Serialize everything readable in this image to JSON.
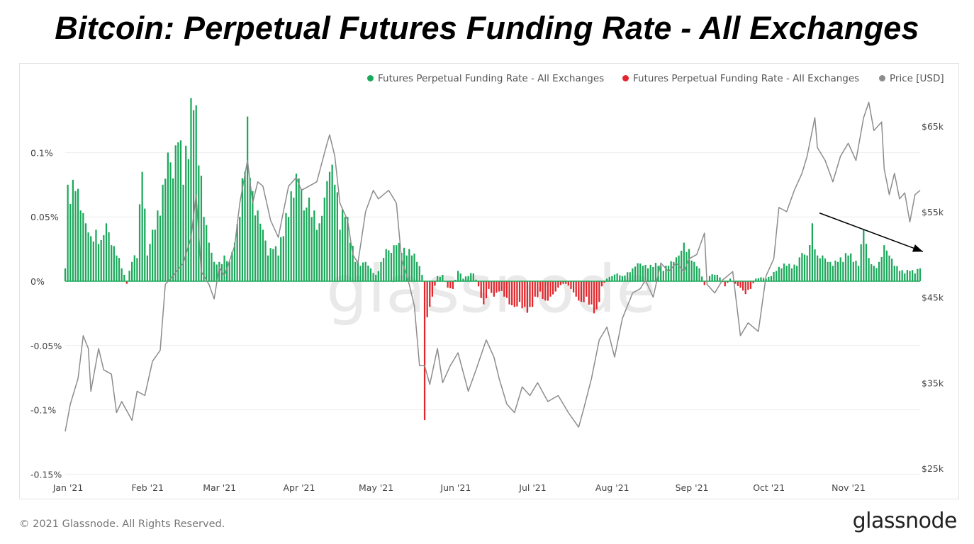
{
  "title": "Bitcoin: Perpetual Futures Funding Rate - All Exchanges",
  "copyright": "© 2021 Glassnode. All Rights Reserved.",
  "brand": "glassnode",
  "watermark": "glassnode",
  "colors": {
    "positive": "#1aa85a",
    "negative": "#e2262c",
    "price": "#8c8c8c",
    "grid": "#ececec",
    "arrow": "#000000"
  },
  "chart_data": {
    "type": "bar",
    "legend": [
      {
        "label": "Futures Perpetual Funding Rate - All Exchanges",
        "color": "#1aa85a"
      },
      {
        "label": "Futures Perpetual Funding Rate - All Exchanges",
        "color": "#e2262c"
      },
      {
        "label": "Price [USD]",
        "color": "#8c8c8c"
      }
    ],
    "legend_position": "top-right",
    "grid": true,
    "x_range": [
      "2021-01-01",
      "2021-11-30"
    ],
    "x_ticks": [
      "Jan '21",
      "Feb '21",
      "Mar '21",
      "Apr '21",
      "May '21",
      "Jun '21",
      "Jul '21",
      "Aug '21",
      "Sep '21",
      "Oct '21",
      "Nov '21"
    ],
    "y_left": {
      "label": "",
      "range": [
        -0.15,
        0.15
      ],
      "ticks": [
        "0.1%",
        "0.05%",
        "0%",
        "-0.05%",
        "-0.1%",
        "-0.15%"
      ],
      "tick_values": [
        0.1,
        0.05,
        0,
        -0.05,
        -0.1,
        -0.15
      ]
    },
    "y_right": {
      "label": "",
      "range": [
        25000,
        70000
      ],
      "ticks": [
        "$65k",
        "$55k",
        "$45k",
        "$35k",
        "$25k"
      ],
      "tick_values": [
        65000,
        55000,
        45000,
        35000,
        25000
      ]
    },
    "funding_rate_anchors": [
      [
        "2021-01-01",
        0.01
      ],
      [
        "2021-01-02",
        0.075
      ],
      [
        "2021-01-03",
        0.06
      ],
      [
        "2021-01-05",
        0.07
      ],
      [
        "2021-01-07",
        0.055
      ],
      [
        "2021-01-09",
        0.045
      ],
      [
        "2021-01-11",
        0.035
      ],
      [
        "2021-01-13",
        0.04
      ],
      [
        "2021-01-15",
        0.032
      ],
      [
        "2021-01-17",
        0.045
      ],
      [
        "2021-01-19",
        0.028
      ],
      [
        "2021-01-21",
        0.02
      ],
      [
        "2021-01-23",
        0.01
      ],
      [
        "2021-01-25",
        -0.002
      ],
      [
        "2021-01-27",
        0.015
      ],
      [
        "2021-01-29",
        0.018
      ],
      [
        "2021-01-31",
        0.085
      ],
      [
        "2021-02-02",
        0.02
      ],
      [
        "2021-02-04",
        0.04
      ],
      [
        "2021-02-06",
        0.055
      ],
      [
        "2021-02-08",
        0.075
      ],
      [
        "2021-02-10",
        0.1
      ],
      [
        "2021-02-12",
        0.08
      ],
      [
        "2021-02-14",
        0.108
      ],
      [
        "2021-02-16",
        0.075
      ],
      [
        "2021-02-18",
        0.095
      ],
      [
        "2021-02-20",
        0.133
      ],
      [
        "2021-02-22",
        0.09
      ],
      [
        "2021-02-24",
        0.05
      ],
      [
        "2021-02-26",
        0.03
      ],
      [
        "2021-02-28",
        0.015
      ],
      [
        "2021-03-02",
        0.015
      ],
      [
        "2021-03-04",
        0.02
      ],
      [
        "2021-03-06",
        0.015
      ],
      [
        "2021-03-08",
        0.03
      ],
      [
        "2021-03-10",
        0.05
      ],
      [
        "2021-03-12",
        0.085
      ],
      [
        "2021-03-13",
        0.128
      ],
      [
        "2021-03-15",
        0.07
      ],
      [
        "2021-03-17",
        0.055
      ],
      [
        "2021-03-19",
        0.04
      ],
      [
        "2021-03-21",
        0.02
      ],
      [
        "2021-03-23",
        0.025
      ],
      [
        "2021-03-25",
        0.02
      ],
      [
        "2021-03-27",
        0.035
      ],
      [
        "2021-03-29",
        0.05
      ],
      [
        "2021-03-31",
        0.065
      ],
      [
        "2021-04-02",
        0.08
      ],
      [
        "2021-04-04",
        0.055
      ],
      [
        "2021-04-06",
        0.065
      ],
      [
        "2021-04-08",
        0.055
      ],
      [
        "2021-04-10",
        0.045
      ],
      [
        "2021-04-12",
        0.065
      ],
      [
        "2021-04-14",
        0.085
      ],
      [
        "2021-04-16",
        0.075
      ],
      [
        "2021-04-18",
        0.04
      ],
      [
        "2021-04-20",
        0.05
      ],
      [
        "2021-04-22",
        0.03
      ],
      [
        "2021-04-24",
        0.015
      ],
      [
        "2021-04-26",
        0.012
      ],
      [
        "2021-04-28",
        0.015
      ],
      [
        "2021-04-30",
        0.01
      ],
      [
        "2021-05-02",
        0.005
      ],
      [
        "2021-05-04",
        0.015
      ],
      [
        "2021-05-06",
        0.025
      ],
      [
        "2021-05-08",
        0.022
      ],
      [
        "2021-05-10",
        0.028
      ],
      [
        "2021-05-12",
        0.022
      ],
      [
        "2021-05-14",
        0.02
      ],
      [
        "2021-05-16",
        0.02
      ],
      [
        "2021-05-18",
        0.015
      ],
      [
        "2021-05-20",
        0.005
      ],
      [
        "2021-05-21",
        -0.108
      ],
      [
        "2021-05-22",
        -0.028
      ],
      [
        "2021-05-24",
        -0.012
      ],
      [
        "2021-05-26",
        0.004
      ],
      [
        "2021-05-28",
        0.005
      ],
      [
        "2021-05-30",
        -0.005
      ],
      [
        "2021-06-01",
        -0.006
      ],
      [
        "2021-06-03",
        0.008
      ],
      [
        "2021-06-05",
        0.002
      ],
      [
        "2021-06-07",
        0.004
      ],
      [
        "2021-06-09",
        0.006
      ],
      [
        "2021-06-11",
        -0.004
      ],
      [
        "2021-06-13",
        -0.018
      ],
      [
        "2021-06-15",
        -0.006
      ],
      [
        "2021-06-17",
        -0.012
      ],
      [
        "2021-06-19",
        -0.008
      ],
      [
        "2021-06-21",
        -0.012
      ],
      [
        "2021-06-23",
        -0.018
      ],
      [
        "2021-06-25",
        -0.02
      ],
      [
        "2021-06-27",
        -0.016
      ],
      [
        "2021-06-29",
        -0.02
      ],
      [
        "2021-07-01",
        -0.02
      ],
      [
        "2021-07-03",
        -0.012
      ],
      [
        "2021-07-05",
        -0.008
      ],
      [
        "2021-07-07",
        -0.015
      ],
      [
        "2021-07-09",
        -0.012
      ],
      [
        "2021-07-11",
        -0.008
      ],
      [
        "2021-07-13",
        -0.003
      ],
      [
        "2021-07-15",
        -0.002
      ],
      [
        "2021-07-17",
        -0.006
      ],
      [
        "2021-07-19",
        -0.012
      ],
      [
        "2021-07-21",
        -0.016
      ],
      [
        "2021-07-23",
        -0.012
      ],
      [
        "2021-07-25",
        -0.018
      ],
      [
        "2021-07-27",
        -0.022
      ],
      [
        "2021-07-29",
        -0.004
      ],
      [
        "2021-07-31",
        0.002
      ],
      [
        "2021-08-02",
        0.004
      ],
      [
        "2021-08-04",
        0.006
      ],
      [
        "2021-08-06",
        0.004
      ],
      [
        "2021-08-08",
        0.007
      ],
      [
        "2021-08-10",
        0.01
      ],
      [
        "2021-08-12",
        0.014
      ],
      [
        "2021-08-14",
        0.012
      ],
      [
        "2021-08-16",
        0.01
      ],
      [
        "2021-08-18",
        0.011
      ],
      [
        "2021-08-20",
        0.012
      ],
      [
        "2021-08-22",
        0.008
      ],
      [
        "2021-08-24",
        0.012
      ],
      [
        "2021-08-26",
        0.015
      ],
      [
        "2021-08-28",
        0.02
      ],
      [
        "2021-08-30",
        0.03
      ],
      [
        "2021-09-01",
        0.025
      ],
      [
        "2021-09-03",
        0.015
      ],
      [
        "2021-09-05",
        0.01
      ],
      [
        "2021-09-07",
        -0.003
      ],
      [
        "2021-09-09",
        0.004
      ],
      [
        "2021-09-11",
        0.005
      ],
      [
        "2021-09-13",
        0.003
      ],
      [
        "2021-09-15",
        -0.004
      ],
      [
        "2021-09-17",
        0.002
      ],
      [
        "2021-09-19",
        -0.002
      ],
      [
        "2021-09-21",
        -0.005
      ],
      [
        "2021-09-23",
        -0.01
      ],
      [
        "2021-09-25",
        -0.006
      ],
      [
        "2021-09-27",
        0.002
      ],
      [
        "2021-09-29",
        0.003
      ],
      [
        "2021-10-01",
        0.002
      ],
      [
        "2021-10-03",
        0.004
      ],
      [
        "2021-10-05",
        0.008
      ],
      [
        "2021-10-07",
        0.01
      ],
      [
        "2021-10-09",
        0.012
      ],
      [
        "2021-10-11",
        0.01
      ],
      [
        "2021-10-13",
        0.012
      ],
      [
        "2021-10-15",
        0.022
      ],
      [
        "2021-10-17",
        0.02
      ],
      [
        "2021-10-19",
        0.045
      ],
      [
        "2021-10-21",
        0.02
      ],
      [
        "2021-10-23",
        0.02
      ],
      [
        "2021-10-25",
        0.015
      ],
      [
        "2021-10-27",
        0.012
      ],
      [
        "2021-10-29",
        0.015
      ],
      [
        "2021-10-31",
        0.015
      ],
      [
        "2021-11-02",
        0.02
      ],
      [
        "2021-11-04",
        0.015
      ],
      [
        "2021-11-06",
        0.012
      ],
      [
        "2021-11-08",
        0.04
      ],
      [
        "2021-11-10",
        0.018
      ],
      [
        "2021-11-12",
        0.012
      ],
      [
        "2021-11-14",
        0.015
      ],
      [
        "2021-11-16",
        0.028
      ],
      [
        "2021-11-18",
        0.02
      ],
      [
        "2021-11-20",
        0.012
      ],
      [
        "2021-11-22",
        0.008
      ],
      [
        "2021-11-24",
        0.006
      ],
      [
        "2021-11-26",
        0.008
      ],
      [
        "2021-11-28",
        0.006
      ],
      [
        "2021-11-30",
        0.01
      ]
    ],
    "price_usd_anchors": [
      [
        "2021-01-01",
        29300
      ],
      [
        "2021-01-03",
        32500
      ],
      [
        "2021-01-06",
        35500
      ],
      [
        "2021-01-08",
        40500
      ],
      [
        "2021-01-10",
        39000
      ],
      [
        "2021-01-11",
        34000
      ],
      [
        "2021-01-14",
        39000
      ],
      [
        "2021-01-16",
        36500
      ],
      [
        "2021-01-19",
        36000
      ],
      [
        "2021-01-21",
        31500
      ],
      [
        "2021-01-23",
        32800
      ],
      [
        "2021-01-27",
        30600
      ],
      [
        "2021-01-29",
        34000
      ],
      [
        "2021-02-01",
        33500
      ],
      [
        "2021-02-04",
        37500
      ],
      [
        "2021-02-07",
        38800
      ],
      [
        "2021-02-09",
        46500
      ],
      [
        "2021-02-12",
        47500
      ],
      [
        "2021-02-16",
        49000
      ],
      [
        "2021-02-19",
        52000
      ],
      [
        "2021-02-21",
        57000
      ],
      [
        "2021-02-23",
        48000
      ],
      [
        "2021-02-26",
        46500
      ],
      [
        "2021-02-28",
        44800
      ],
      [
        "2021-03-02",
        48500
      ],
      [
        "2021-03-04",
        47500
      ],
      [
        "2021-03-08",
        51000
      ],
      [
        "2021-03-10",
        56000
      ],
      [
        "2021-03-13",
        61000
      ],
      [
        "2021-03-15",
        56000
      ],
      [
        "2021-03-17",
        58500
      ],
      [
        "2021-03-19",
        58000
      ],
      [
        "2021-03-22",
        54000
      ],
      [
        "2021-03-25",
        52000
      ],
      [
        "2021-03-27",
        55000
      ],
      [
        "2021-03-29",
        58000
      ],
      [
        "2021-04-01",
        59000
      ],
      [
        "2021-04-03",
        57500
      ],
      [
        "2021-04-06",
        58000
      ],
      [
        "2021-04-09",
        58500
      ],
      [
        "2021-04-13",
        63000
      ],
      [
        "2021-04-14",
        64000
      ],
      [
        "2021-04-16",
        61500
      ],
      [
        "2021-04-18",
        56000
      ],
      [
        "2021-04-21",
        54000
      ],
      [
        "2021-04-23",
        50000
      ],
      [
        "2021-04-25",
        49000
      ],
      [
        "2021-04-28",
        55000
      ],
      [
        "2021-05-01",
        57500
      ],
      [
        "2021-05-03",
        56500
      ],
      [
        "2021-05-07",
        57500
      ],
      [
        "2021-05-10",
        56000
      ],
      [
        "2021-05-12",
        49500
      ],
      [
        "2021-05-15",
        46500
      ],
      [
        "2021-05-17",
        44000
      ],
      [
        "2021-05-19",
        37000
      ],
      [
        "2021-05-21",
        37000
      ],
      [
        "2021-05-23",
        34800
      ],
      [
        "2021-05-26",
        39000
      ],
      [
        "2021-05-28",
        35000
      ],
      [
        "2021-05-31",
        37000
      ],
      [
        "2021-06-03",
        38500
      ],
      [
        "2021-06-07",
        34000
      ],
      [
        "2021-06-10",
        36500
      ],
      [
        "2021-06-14",
        40000
      ],
      [
        "2021-06-17",
        38000
      ],
      [
        "2021-06-19",
        35500
      ],
      [
        "2021-06-22",
        32500
      ],
      [
        "2021-06-25",
        31500
      ],
      [
        "2021-06-28",
        34500
      ],
      [
        "2021-07-01",
        33500
      ],
      [
        "2021-07-04",
        35000
      ],
      [
        "2021-07-08",
        32800
      ],
      [
        "2021-07-12",
        33500
      ],
      [
        "2021-07-16",
        31500
      ],
      [
        "2021-07-20",
        29800
      ],
      [
        "2021-07-22",
        32000
      ],
      [
        "2021-07-25",
        35500
      ],
      [
        "2021-07-28",
        40000
      ],
      [
        "2021-07-31",
        41500
      ],
      [
        "2021-08-03",
        38000
      ],
      [
        "2021-08-06",
        42500
      ],
      [
        "2021-08-10",
        45500
      ],
      [
        "2021-08-13",
        46000
      ],
      [
        "2021-08-15",
        47000
      ],
      [
        "2021-08-18",
        45000
      ],
      [
        "2021-08-21",
        49000
      ],
      [
        "2021-08-24",
        48000
      ],
      [
        "2021-08-27",
        49000
      ],
      [
        "2021-08-30",
        48000
      ],
      [
        "2021-09-01",
        49500
      ],
      [
        "2021-09-04",
        50000
      ],
      [
        "2021-09-07",
        52500
      ],
      [
        "2021-09-08",
        46500
      ],
      [
        "2021-09-11",
        45500
      ],
      [
        "2021-09-14",
        47000
      ],
      [
        "2021-09-18",
        48000
      ],
      [
        "2021-09-21",
        40500
      ],
      [
        "2021-09-24",
        42000
      ],
      [
        "2021-09-28",
        41000
      ],
      [
        "2021-10-01",
        47500
      ],
      [
        "2021-10-04",
        49500
      ],
      [
        "2021-10-06",
        55500
      ],
      [
        "2021-10-09",
        55000
      ],
      [
        "2021-10-12",
        57500
      ],
      [
        "2021-10-15",
        59500
      ],
      [
        "2021-10-17",
        61500
      ],
      [
        "2021-10-20",
        66000
      ],
      [
        "2021-10-21",
        62500
      ],
      [
        "2021-10-24",
        61000
      ],
      [
        "2021-10-27",
        58500
      ],
      [
        "2021-10-30",
        61500
      ],
      [
        "2021-11-02",
        63000
      ],
      [
        "2021-11-05",
        61000
      ],
      [
        "2021-11-08",
        66000
      ],
      [
        "2021-11-10",
        67800
      ],
      [
        "2021-11-12",
        64500
      ],
      [
        "2021-11-15",
        65500
      ],
      [
        "2021-11-16",
        60000
      ],
      [
        "2021-11-18",
        57000
      ],
      [
        "2021-11-20",
        59500
      ],
      [
        "2021-11-22",
        56500
      ],
      [
        "2021-11-24",
        57200
      ],
      [
        "2021-11-26",
        53800
      ],
      [
        "2021-11-28",
        57000
      ],
      [
        "2021-11-30",
        57500
      ]
    ],
    "annotation": {
      "type": "arrow",
      "from": [
        "2021-10-21",
        0.053
      ],
      "to": [
        "2021-11-30",
        0.023
      ]
    }
  }
}
